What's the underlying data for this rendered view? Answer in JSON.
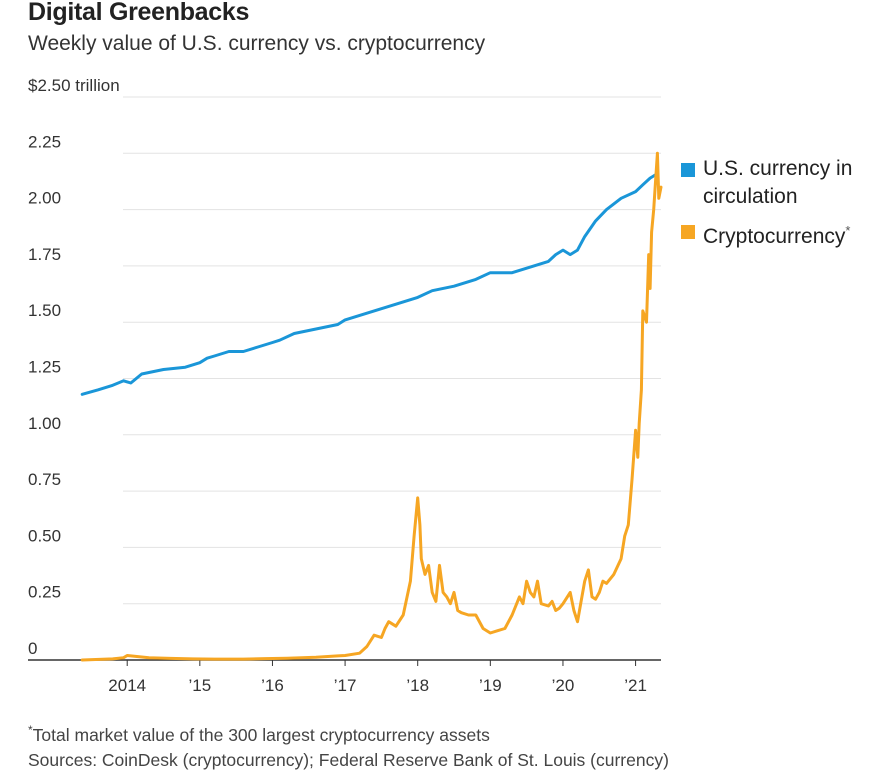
{
  "header": {
    "title": "Digital Greenbacks",
    "subtitle": "Weekly value of U.S. currency vs. cryptocurrency"
  },
  "legend": {
    "items": [
      {
        "label_line1": "U.S. currency in",
        "label_line2": "circulation",
        "color": "#1a96d8"
      },
      {
        "label_line1": "Cryptocurrency",
        "label_line2": "",
        "footnote_mark": "*",
        "color": "#f6a623"
      }
    ]
  },
  "footer": {
    "footnote_mark": "*",
    "footnote": "Total market value of the 300 largest cryptocurrency assets",
    "sources": "Sources: CoinDesk (cryptocurrency); Federal Reserve Bank of St. Louis (currency)"
  },
  "chart_data": {
    "type": "line",
    "ylim": [
      0,
      2.5
    ],
    "xlim": [
      2013.35,
      2021.35
    ],
    "y_ticks": [
      {
        "value": 0,
        "label": "0"
      },
      {
        "value": 0.25,
        "label": "0.25"
      },
      {
        "value": 0.5,
        "label": "0.50"
      },
      {
        "value": 0.75,
        "label": "0.75"
      },
      {
        "value": 1.0,
        "label": "1.00"
      },
      {
        "value": 1.25,
        "label": "1.25"
      },
      {
        "value": 1.5,
        "label": "1.50"
      },
      {
        "value": 1.75,
        "label": "1.75"
      },
      {
        "value": 2.0,
        "label": "2.00"
      },
      {
        "value": 2.25,
        "label": "2.25"
      },
      {
        "value": 2.5,
        "label": "$2.50 trillion"
      }
    ],
    "x_ticks": [
      {
        "value": 2014,
        "label": "2014"
      },
      {
        "value": 2015,
        "label": "’15"
      },
      {
        "value": 2016,
        "label": "’16"
      },
      {
        "value": 2017,
        "label": "’17"
      },
      {
        "value": 2018,
        "label": "’18"
      },
      {
        "value": 2019,
        "label": "’19"
      },
      {
        "value": 2020,
        "label": "’20"
      },
      {
        "value": 2021,
        "label": "’21"
      }
    ],
    "grid": true,
    "legend_position": "right",
    "series": [
      {
        "name": "U.S. currency in circulation",
        "color": "#1a96d8",
        "x": [
          2013.38,
          2013.6,
          2013.8,
          2013.95,
          2014.05,
          2014.2,
          2014.5,
          2014.8,
          2015.0,
          2015.1,
          2015.2,
          2015.4,
          2015.6,
          2015.8,
          2016.0,
          2016.1,
          2016.3,
          2016.6,
          2016.9,
          2017.0,
          2017.2,
          2017.5,
          2017.8,
          2018.0,
          2018.2,
          2018.5,
          2018.8,
          2019.0,
          2019.3,
          2019.6,
          2019.8,
          2019.9,
          2020.0,
          2020.1,
          2020.2,
          2020.3,
          2020.45,
          2020.6,
          2020.8,
          2021.0,
          2021.1,
          2021.2,
          2021.3
        ],
        "y": [
          1.18,
          1.2,
          1.22,
          1.24,
          1.23,
          1.27,
          1.29,
          1.3,
          1.32,
          1.34,
          1.35,
          1.37,
          1.37,
          1.39,
          1.41,
          1.42,
          1.45,
          1.47,
          1.49,
          1.51,
          1.53,
          1.56,
          1.59,
          1.61,
          1.64,
          1.66,
          1.69,
          1.72,
          1.72,
          1.75,
          1.77,
          1.8,
          1.82,
          1.8,
          1.82,
          1.88,
          1.95,
          2.0,
          2.05,
          2.08,
          2.11,
          2.14,
          2.16
        ]
      },
      {
        "name": "Cryptocurrency",
        "color": "#f6a623",
        "x": [
          2013.38,
          2013.8,
          2013.95,
          2014.0,
          2014.3,
          2014.6,
          2014.9,
          2015.2,
          2015.6,
          2015.9,
          2016.2,
          2016.6,
          2016.9,
          2017.0,
          2017.2,
          2017.3,
          2017.4,
          2017.5,
          2017.55,
          2017.6,
          2017.7,
          2017.8,
          2017.9,
          2017.95,
          2018.0,
          2018.03,
          2018.05,
          2018.1,
          2018.15,
          2018.2,
          2018.25,
          2018.3,
          2018.35,
          2018.4,
          2018.45,
          2018.5,
          2018.55,
          2018.6,
          2018.7,
          2018.8,
          2018.9,
          2019.0,
          2019.1,
          2019.2,
          2019.3,
          2019.4,
          2019.45,
          2019.5,
          2019.55,
          2019.6,
          2019.65,
          2019.7,
          2019.8,
          2019.85,
          2019.9,
          2019.95,
          2020.0,
          2020.1,
          2020.15,
          2020.2,
          2020.25,
          2020.3,
          2020.35,
          2020.4,
          2020.45,
          2020.5,
          2020.55,
          2020.6,
          2020.7,
          2020.8,
          2020.85,
          2020.9,
          2020.95,
          2021.0,
          2021.03,
          2021.05,
          2021.08,
          2021.1,
          2021.15,
          2021.18,
          2021.2,
          2021.22,
          2021.25,
          2021.28,
          2021.3,
          2021.32,
          2021.35
        ],
        "y": [
          0.0,
          0.005,
          0.01,
          0.02,
          0.01,
          0.007,
          0.005,
          0.004,
          0.004,
          0.006,
          0.008,
          0.012,
          0.018,
          0.02,
          0.03,
          0.06,
          0.11,
          0.1,
          0.14,
          0.17,
          0.15,
          0.2,
          0.35,
          0.55,
          0.72,
          0.6,
          0.45,
          0.38,
          0.42,
          0.3,
          0.26,
          0.42,
          0.3,
          0.28,
          0.25,
          0.3,
          0.22,
          0.21,
          0.2,
          0.2,
          0.14,
          0.12,
          0.13,
          0.14,
          0.2,
          0.28,
          0.25,
          0.35,
          0.3,
          0.28,
          0.35,
          0.25,
          0.24,
          0.26,
          0.22,
          0.23,
          0.25,
          0.3,
          0.22,
          0.17,
          0.26,
          0.35,
          0.4,
          0.28,
          0.27,
          0.3,
          0.35,
          0.34,
          0.38,
          0.45,
          0.55,
          0.6,
          0.8,
          1.02,
          0.9,
          1.05,
          1.2,
          1.55,
          1.5,
          1.8,
          1.65,
          1.9,
          2.0,
          2.15,
          2.25,
          2.05,
          2.1
        ]
      }
    ]
  }
}
